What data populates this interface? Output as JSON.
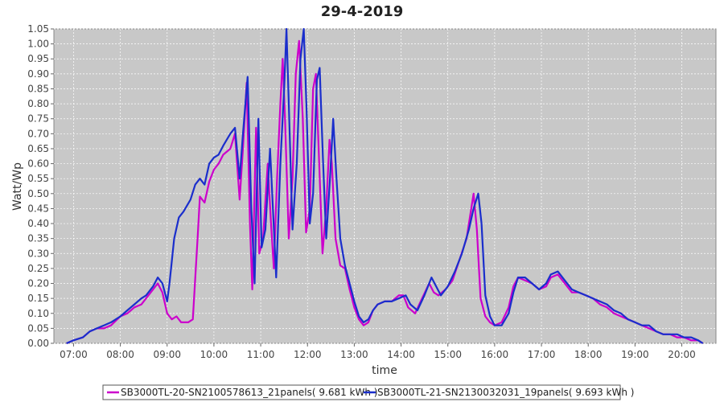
{
  "chart_data": {
    "type": "line",
    "title": "29-4-2019",
    "xlabel": "time",
    "ylabel": "Watt/Wp",
    "grid": true,
    "legend_position": "bottom",
    "x_ticks": [
      "07:00",
      "08:00",
      "09:00",
      "10:00",
      "11:00",
      "12:00",
      "13:00",
      "14:00",
      "15:00",
      "16:00",
      "17:00",
      "18:00",
      "19:00",
      "20:00"
    ],
    "x_tick_values": [
      7,
      8,
      9,
      10,
      11,
      12,
      13,
      14,
      15,
      16,
      17,
      18,
      19,
      20
    ],
    "xlim": [
      6.58,
      20.73
    ],
    "ylim": [
      0,
      1.05
    ],
    "y_ticks": [
      "0.00",
      "0.05",
      "0.10",
      "0.15",
      "0.20",
      "0.25",
      "0.30",
      "0.35",
      "0.40",
      "0.45",
      "0.50",
      "0.55",
      "0.60",
      "0.65",
      "0.70",
      "0.75",
      "0.80",
      "0.85",
      "0.90",
      "0.95",
      "1.00",
      "1.05"
    ],
    "series": [
      {
        "name": "SB3000TL-20-SN2100578613_21panels( 9.681 kWh )",
        "color": "#cc00cc",
        "points": [
          [
            6.85,
            0.0
          ],
          [
            7.0,
            0.01
          ],
          [
            7.2,
            0.02
          ],
          [
            7.35,
            0.04
          ],
          [
            7.5,
            0.05
          ],
          [
            7.65,
            0.05
          ],
          [
            7.8,
            0.06
          ],
          [
            8.0,
            0.09
          ],
          [
            8.15,
            0.1
          ],
          [
            8.3,
            0.12
          ],
          [
            8.45,
            0.13
          ],
          [
            8.55,
            0.15
          ],
          [
            8.7,
            0.18
          ],
          [
            8.8,
            0.2
          ],
          [
            8.9,
            0.17
          ],
          [
            9.0,
            0.1
          ],
          [
            9.1,
            0.08
          ],
          [
            9.2,
            0.09
          ],
          [
            9.3,
            0.07
          ],
          [
            9.45,
            0.07
          ],
          [
            9.55,
            0.08
          ],
          [
            9.65,
            0.35
          ],
          [
            9.7,
            0.49
          ],
          [
            9.8,
            0.47
          ],
          [
            9.9,
            0.54
          ],
          [
            10.0,
            0.58
          ],
          [
            10.1,
            0.6
          ],
          [
            10.2,
            0.63
          ],
          [
            10.35,
            0.65
          ],
          [
            10.45,
            0.7
          ],
          [
            10.55,
            0.48
          ],
          [
            10.62,
            0.65
          ],
          [
            10.7,
            0.87
          ],
          [
            10.77,
            0.4
          ],
          [
            10.82,
            0.18
          ],
          [
            10.9,
            0.72
          ],
          [
            10.97,
            0.3
          ],
          [
            11.05,
            0.35
          ],
          [
            11.15,
            0.6
          ],
          [
            11.22,
            0.4
          ],
          [
            11.28,
            0.25
          ],
          [
            11.35,
            0.55
          ],
          [
            11.42,
            0.8
          ],
          [
            11.47,
            0.95
          ],
          [
            11.52,
            0.75
          ],
          [
            11.6,
            0.35
          ],
          [
            11.68,
            0.55
          ],
          [
            11.75,
            0.9
          ],
          [
            11.82,
            1.01
          ],
          [
            11.9,
            0.75
          ],
          [
            11.97,
            0.37
          ],
          [
            12.05,
            0.45
          ],
          [
            12.12,
            0.85
          ],
          [
            12.18,
            0.9
          ],
          [
            12.25,
            0.6
          ],
          [
            12.32,
            0.3
          ],
          [
            12.4,
            0.45
          ],
          [
            12.47,
            0.68
          ],
          [
            12.52,
            0.6
          ],
          [
            12.6,
            0.35
          ],
          [
            12.7,
            0.26
          ],
          [
            12.8,
            0.25
          ],
          [
            12.9,
            0.18
          ],
          [
            13.0,
            0.12
          ],
          [
            13.1,
            0.08
          ],
          [
            13.2,
            0.06
          ],
          [
            13.3,
            0.07
          ],
          [
            13.4,
            0.11
          ],
          [
            13.5,
            0.13
          ],
          [
            13.65,
            0.14
          ],
          [
            13.8,
            0.14
          ],
          [
            13.95,
            0.16
          ],
          [
            14.05,
            0.16
          ],
          [
            14.15,
            0.12
          ],
          [
            14.3,
            0.1
          ],
          [
            14.45,
            0.15
          ],
          [
            14.6,
            0.2
          ],
          [
            14.7,
            0.17
          ],
          [
            14.8,
            0.16
          ],
          [
            14.95,
            0.18
          ],
          [
            15.1,
            0.21
          ],
          [
            15.25,
            0.28
          ],
          [
            15.4,
            0.35
          ],
          [
            15.5,
            0.45
          ],
          [
            15.55,
            0.5
          ],
          [
            15.62,
            0.38
          ],
          [
            15.7,
            0.15
          ],
          [
            15.8,
            0.09
          ],
          [
            15.9,
            0.07
          ],
          [
            16.0,
            0.06
          ],
          [
            16.15,
            0.07
          ],
          [
            16.3,
            0.12
          ],
          [
            16.4,
            0.19
          ],
          [
            16.5,
            0.22
          ],
          [
            16.65,
            0.21
          ],
          [
            16.8,
            0.2
          ],
          [
            16.95,
            0.18
          ],
          [
            17.1,
            0.19
          ],
          [
            17.2,
            0.22
          ],
          [
            17.35,
            0.23
          ],
          [
            17.5,
            0.2
          ],
          [
            17.65,
            0.17
          ],
          [
            17.8,
            0.17
          ],
          [
            17.95,
            0.16
          ],
          [
            18.1,
            0.15
          ],
          [
            18.25,
            0.13
          ],
          [
            18.4,
            0.12
          ],
          [
            18.55,
            0.1
          ],
          [
            18.7,
            0.09
          ],
          [
            18.85,
            0.08
          ],
          [
            19.0,
            0.07
          ],
          [
            19.15,
            0.06
          ],
          [
            19.3,
            0.05
          ],
          [
            19.45,
            0.04
          ],
          [
            19.6,
            0.03
          ],
          [
            19.75,
            0.03
          ],
          [
            19.9,
            0.02
          ],
          [
            20.05,
            0.02
          ],
          [
            20.2,
            0.01
          ],
          [
            20.35,
            0.01
          ],
          [
            20.45,
            0.0
          ]
        ]
      },
      {
        "name": "SB3000TL-21-SN2130032031_19panels( 9.693 kWh )",
        "color": "#1a2ecc",
        "points": [
          [
            6.85,
            0.0
          ],
          [
            7.0,
            0.01
          ],
          [
            7.2,
            0.02
          ],
          [
            7.35,
            0.04
          ],
          [
            7.5,
            0.05
          ],
          [
            7.65,
            0.06
          ],
          [
            7.8,
            0.07
          ],
          [
            8.0,
            0.09
          ],
          [
            8.15,
            0.11
          ],
          [
            8.3,
            0.13
          ],
          [
            8.45,
            0.15
          ],
          [
            8.55,
            0.16
          ],
          [
            8.7,
            0.19
          ],
          [
            8.8,
            0.22
          ],
          [
            8.9,
            0.2
          ],
          [
            9.0,
            0.14
          ],
          [
            9.05,
            0.2
          ],
          [
            9.15,
            0.35
          ],
          [
            9.25,
            0.42
          ],
          [
            9.35,
            0.44
          ],
          [
            9.5,
            0.48
          ],
          [
            9.6,
            0.53
          ],
          [
            9.7,
            0.55
          ],
          [
            9.8,
            0.53
          ],
          [
            9.9,
            0.6
          ],
          [
            10.0,
            0.62
          ],
          [
            10.1,
            0.63
          ],
          [
            10.2,
            0.66
          ],
          [
            10.35,
            0.7
          ],
          [
            10.45,
            0.72
          ],
          [
            10.55,
            0.55
          ],
          [
            10.62,
            0.7
          ],
          [
            10.72,
            0.89
          ],
          [
            10.8,
            0.45
          ],
          [
            10.87,
            0.2
          ],
          [
            10.95,
            0.75
          ],
          [
            11.02,
            0.32
          ],
          [
            11.1,
            0.38
          ],
          [
            11.2,
            0.65
          ],
          [
            11.27,
            0.42
          ],
          [
            11.33,
            0.22
          ],
          [
            11.42,
            0.6
          ],
          [
            11.5,
            0.85
          ],
          [
            11.55,
            1.05
          ],
          [
            11.6,
            0.8
          ],
          [
            11.68,
            0.38
          ],
          [
            11.77,
            0.6
          ],
          [
            11.85,
            0.95
          ],
          [
            11.92,
            1.05
          ],
          [
            11.98,
            0.78
          ],
          [
            12.05,
            0.4
          ],
          [
            12.12,
            0.5
          ],
          [
            12.2,
            0.88
          ],
          [
            12.26,
            0.92
          ],
          [
            12.33,
            0.62
          ],
          [
            12.4,
            0.35
          ],
          [
            12.48,
            0.55
          ],
          [
            12.55,
            0.75
          ],
          [
            12.62,
            0.55
          ],
          [
            12.7,
            0.35
          ],
          [
            12.8,
            0.26
          ],
          [
            12.9,
            0.2
          ],
          [
            13.0,
            0.14
          ],
          [
            13.1,
            0.09
          ],
          [
            13.2,
            0.07
          ],
          [
            13.3,
            0.08
          ],
          [
            13.4,
            0.11
          ],
          [
            13.5,
            0.13
          ],
          [
            13.65,
            0.14
          ],
          [
            13.8,
            0.14
          ],
          [
            13.95,
            0.15
          ],
          [
            14.1,
            0.16
          ],
          [
            14.2,
            0.13
          ],
          [
            14.35,
            0.11
          ],
          [
            14.5,
            0.16
          ],
          [
            14.65,
            0.22
          ],
          [
            14.75,
            0.19
          ],
          [
            14.85,
            0.16
          ],
          [
            15.0,
            0.19
          ],
          [
            15.15,
            0.24
          ],
          [
            15.3,
            0.3
          ],
          [
            15.45,
            0.38
          ],
          [
            15.55,
            0.45
          ],
          [
            15.65,
            0.5
          ],
          [
            15.72,
            0.4
          ],
          [
            15.8,
            0.16
          ],
          [
            15.9,
            0.09
          ],
          [
            16.0,
            0.06
          ],
          [
            16.15,
            0.06
          ],
          [
            16.3,
            0.1
          ],
          [
            16.4,
            0.17
          ],
          [
            16.5,
            0.22
          ],
          [
            16.65,
            0.22
          ],
          [
            16.8,
            0.2
          ],
          [
            16.95,
            0.18
          ],
          [
            17.1,
            0.2
          ],
          [
            17.2,
            0.23
          ],
          [
            17.35,
            0.24
          ],
          [
            17.5,
            0.21
          ],
          [
            17.65,
            0.18
          ],
          [
            17.8,
            0.17
          ],
          [
            17.95,
            0.16
          ],
          [
            18.1,
            0.15
          ],
          [
            18.25,
            0.14
          ],
          [
            18.4,
            0.13
          ],
          [
            18.55,
            0.11
          ],
          [
            18.7,
            0.1
          ],
          [
            18.85,
            0.08
          ],
          [
            19.0,
            0.07
          ],
          [
            19.15,
            0.06
          ],
          [
            19.3,
            0.06
          ],
          [
            19.45,
            0.04
          ],
          [
            19.6,
            0.03
          ],
          [
            19.75,
            0.03
          ],
          [
            19.9,
            0.03
          ],
          [
            20.05,
            0.02
          ],
          [
            20.2,
            0.02
          ],
          [
            20.35,
            0.01
          ],
          [
            20.45,
            0.0
          ]
        ]
      }
    ]
  }
}
